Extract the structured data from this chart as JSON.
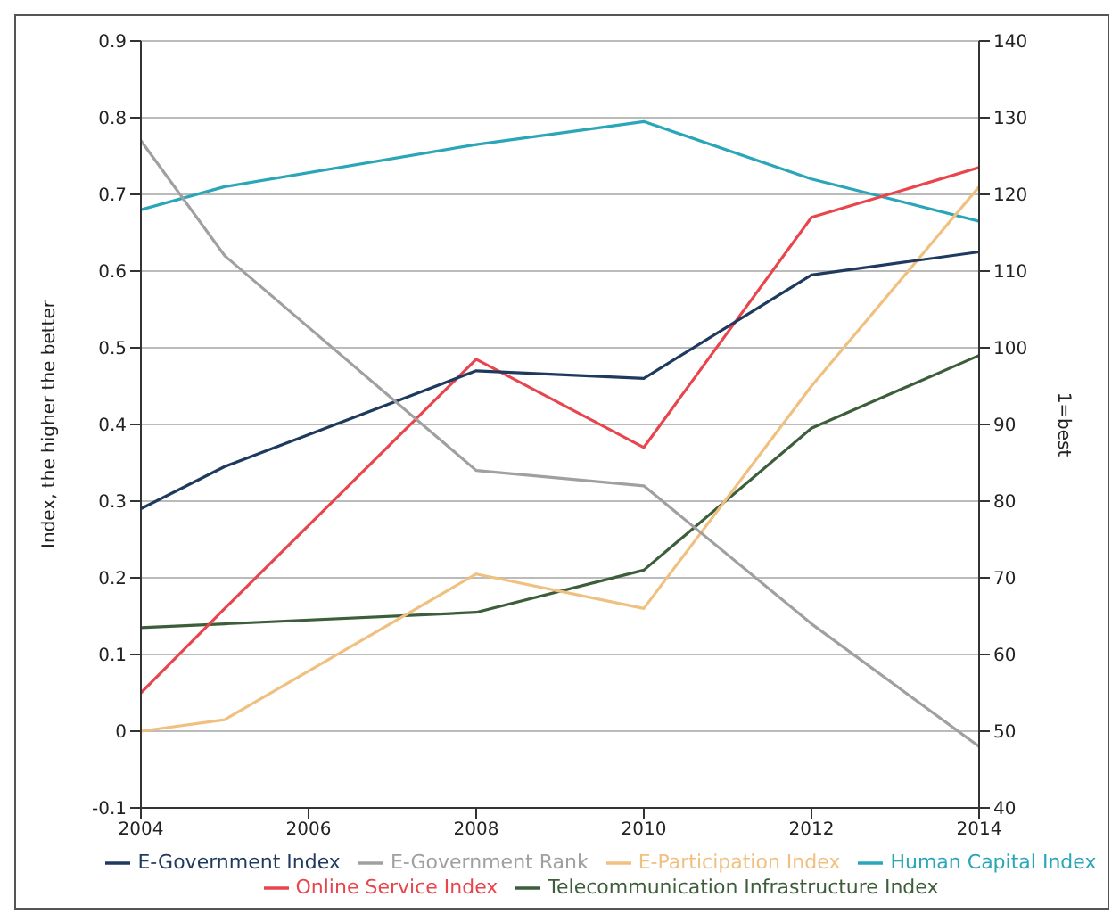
{
  "chart_data": {
    "type": "line",
    "ylabel": "Index, the higher the better",
    "y2label": "1=best",
    "x": [
      2004,
      2005,
      2008,
      2010,
      2012,
      2014
    ],
    "series": [
      {
        "name": "Telecommunication Infrastructure Index",
        "color": "#3d5e3a",
        "values": [
          0.135,
          0.14,
          0.155,
          0.21,
          0.395,
          0.49
        ]
      },
      {
        "name": "Human Capital Index",
        "color": "#2aa6b8",
        "values": [
          0.68,
          0.71,
          0.765,
          0.795,
          0.72,
          0.665
        ]
      },
      {
        "name": "Online Service Index",
        "color": "#e8454d",
        "values": [
          0.05,
          0.16,
          0.485,
          0.37,
          0.67,
          0.735
        ]
      },
      {
        "name": "E-Participation Index",
        "color": "#f0c080",
        "values": [
          0,
          0.015,
          0.205,
          0.16,
          0.45,
          0.71
        ]
      },
      {
        "name": "E-Government Index",
        "color": "#1f3a5f",
        "values": [
          0.29,
          0.345,
          0.47,
          0.46,
          0.595,
          0.625
        ]
      },
      {
        "name": "E-Government Rank",
        "color": "#a0a0a0",
        "axis": "y2",
        "values": [
          127,
          112,
          84,
          82,
          64,
          48
        ]
      }
    ],
    "xlim": [
      2004,
      2014
    ],
    "xticks": [
      2004,
      2006,
      2008,
      2010,
      2012,
      2014
    ],
    "ylim": [
      -0.1,
      0.9
    ],
    "yticks": [
      -0.1,
      0,
      0.1,
      0.2,
      0.3,
      0.4,
      0.5,
      0.6,
      0.7,
      0.8,
      0.9
    ],
    "y2lim": [
      40,
      140
    ],
    "y2ticks": [
      40,
      50,
      60,
      70,
      80,
      90,
      100,
      110,
      120,
      130,
      140
    ],
    "grid": "y",
    "legend": "bottom",
    "marker": "none",
    "line_style": "solid"
  }
}
